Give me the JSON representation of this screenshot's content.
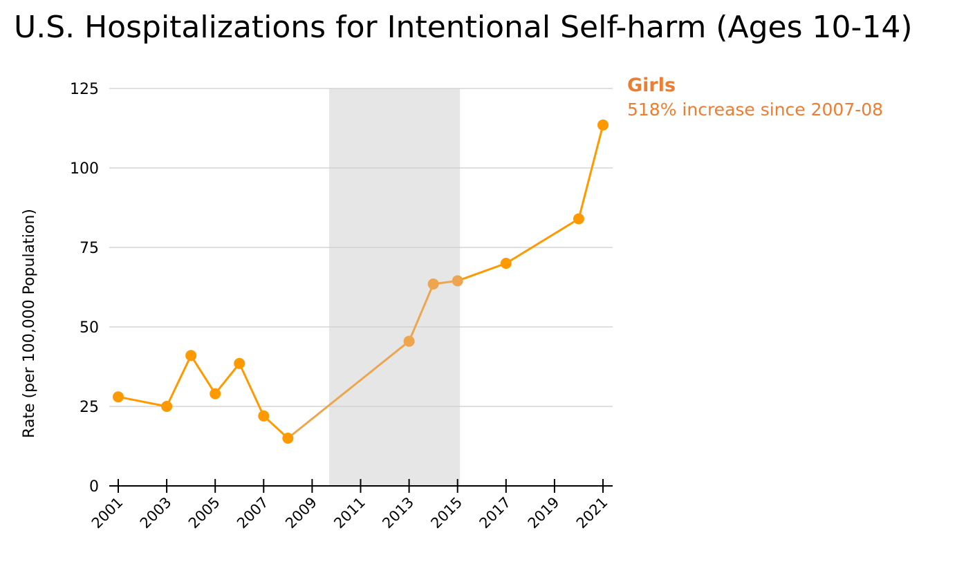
{
  "title": "U.S. Hospitalizations for Intentional Self-harm (Ages 10-14)",
  "annotation": {
    "heading": "Girls",
    "text": "518% increase since 2007-08"
  },
  "chart_data": {
    "type": "line",
    "ylabel": "Rate (per 100,000 Population)",
    "xlabel": "",
    "ylim": [
      0,
      125
    ],
    "yticks": [
      0,
      25,
      50,
      75,
      100,
      125
    ],
    "xlim": [
      2001,
      2021
    ],
    "xticks": [
      2001,
      2003,
      2005,
      2007,
      2009,
      2011,
      2013,
      2015,
      2017,
      2019,
      2021
    ],
    "grid": true,
    "shaded_region": [
      2009.7,
      2015.1
    ],
    "series": [
      {
        "name": "Girls",
        "points": [
          {
            "x": 2001,
            "y": 28
          },
          {
            "x": 2003,
            "y": 25
          },
          {
            "x": 2004,
            "y": 41
          },
          {
            "x": 2005,
            "y": 29
          },
          {
            "x": 2006,
            "y": 38.5
          },
          {
            "x": 2007,
            "y": 22
          },
          {
            "x": 2008,
            "y": 15
          },
          {
            "x": 2013,
            "y": 45.5
          },
          {
            "x": 2014,
            "y": 63.5
          },
          {
            "x": 2015,
            "y": 64.5
          },
          {
            "x": 2017,
            "y": 70
          },
          {
            "x": 2020,
            "y": 84
          },
          {
            "x": 2021,
            "y": 113.5
          }
        ]
      }
    ],
    "colors": {
      "line": "#FF9900",
      "line_faded": "#EDA64D",
      "shade": "#E6E6E6",
      "grid": "#CCCCCC",
      "axis": "#000000"
    }
  }
}
